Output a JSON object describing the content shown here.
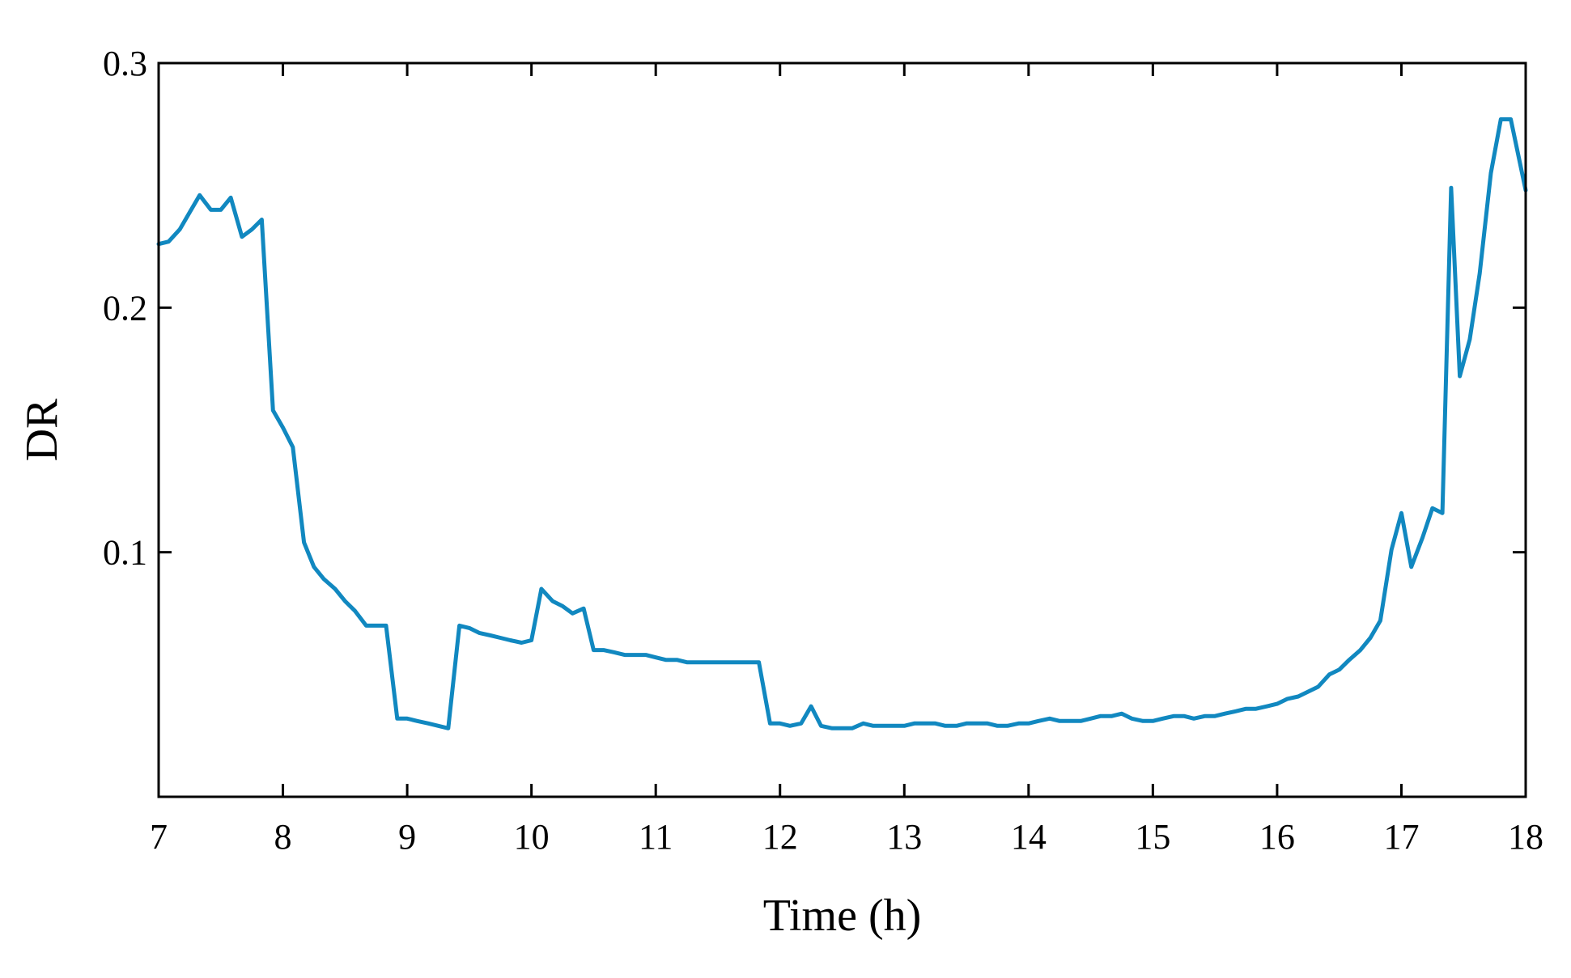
{
  "chart_data": {
    "type": "line",
    "title": "",
    "xlabel": "Time (h)",
    "ylabel": "DR",
    "xlim": [
      7,
      18
    ],
    "ylim": [
      0,
      0.3
    ],
    "x_ticks": [
      "7",
      "8",
      "9",
      "10",
      "11",
      "12",
      "13",
      "14",
      "15",
      "16",
      "17",
      "18"
    ],
    "y_ticks": [
      "0.1",
      "0.2",
      "0.3"
    ],
    "grid": false,
    "legend": "none",
    "line_color": "#1188c0",
    "series": [
      {
        "x": [
          7.0,
          7.08,
          7.17,
          7.25,
          7.33,
          7.42,
          7.5,
          7.58,
          7.67,
          7.75,
          7.83,
          7.92,
          8.0,
          8.08,
          8.17,
          8.25,
          8.33,
          8.42,
          8.5,
          8.58,
          8.67,
          8.75,
          8.83,
          8.92,
          9.0,
          9.08,
          9.17,
          9.25,
          9.33,
          9.42,
          9.5,
          9.58,
          9.67,
          9.75,
          9.83,
          9.92,
          10.0,
          10.08,
          10.17,
          10.25,
          10.33,
          10.42,
          10.5,
          10.58,
          10.67,
          10.75,
          10.83,
          10.92,
          11.0,
          11.08,
          11.17,
          11.25,
          11.33,
          11.42,
          11.5,
          11.58,
          11.67,
          11.75,
          11.83,
          11.92,
          12.0,
          12.08,
          12.17,
          12.25,
          12.33,
          12.42,
          12.5,
          12.58,
          12.67,
          12.75,
          12.83,
          12.92,
          13.0,
          13.08,
          13.17,
          13.25,
          13.33,
          13.42,
          13.5,
          13.58,
          13.67,
          13.75,
          13.83,
          13.92,
          14.0,
          14.08,
          14.17,
          14.25,
          14.33,
          14.42,
          14.5,
          14.58,
          14.67,
          14.75,
          14.83,
          14.92,
          15.0,
          15.08,
          15.17,
          15.25,
          15.33,
          15.42,
          15.5,
          15.58,
          15.67,
          15.75,
          15.83,
          15.92,
          16.0,
          16.08,
          16.17,
          16.25,
          16.33,
          16.42,
          16.5,
          16.58,
          16.67,
          16.75,
          16.83,
          16.92,
          17.0,
          17.08,
          17.17,
          17.25,
          17.33,
          17.4,
          17.47,
          17.55,
          17.63,
          17.72,
          17.8,
          17.88,
          18.0
        ],
        "values": [
          0.226,
          0.227,
          0.232,
          0.239,
          0.246,
          0.24,
          0.24,
          0.245,
          0.229,
          0.232,
          0.236,
          0.158,
          0.151,
          0.143,
          0.104,
          0.094,
          0.089,
          0.085,
          0.08,
          0.076,
          0.07,
          0.07,
          0.07,
          0.032,
          0.032,
          0.031,
          0.03,
          0.029,
          0.028,
          0.07,
          0.069,
          0.067,
          0.066,
          0.065,
          0.064,
          0.063,
          0.064,
          0.085,
          0.08,
          0.078,
          0.075,
          0.077,
          0.06,
          0.06,
          0.059,
          0.058,
          0.058,
          0.058,
          0.057,
          0.056,
          0.056,
          0.055,
          0.055,
          0.055,
          0.055,
          0.055,
          0.055,
          0.055,
          0.055,
          0.03,
          0.03,
          0.029,
          0.03,
          0.037,
          0.029,
          0.028,
          0.028,
          0.028,
          0.03,
          0.029,
          0.029,
          0.029,
          0.029,
          0.03,
          0.03,
          0.03,
          0.029,
          0.029,
          0.03,
          0.03,
          0.03,
          0.029,
          0.029,
          0.03,
          0.03,
          0.031,
          0.032,
          0.031,
          0.031,
          0.031,
          0.032,
          0.033,
          0.033,
          0.034,
          0.032,
          0.031,
          0.031,
          0.032,
          0.033,
          0.033,
          0.032,
          0.033,
          0.033,
          0.034,
          0.035,
          0.036,
          0.036,
          0.037,
          0.038,
          0.04,
          0.041,
          0.043,
          0.045,
          0.05,
          0.052,
          0.056,
          0.06,
          0.065,
          0.072,
          0.101,
          0.116,
          0.094,
          0.106,
          0.118,
          0.116,
          0.249,
          0.172,
          0.187,
          0.214,
          0.255,
          0.277,
          0.277,
          0.248
        ]
      }
    ]
  }
}
